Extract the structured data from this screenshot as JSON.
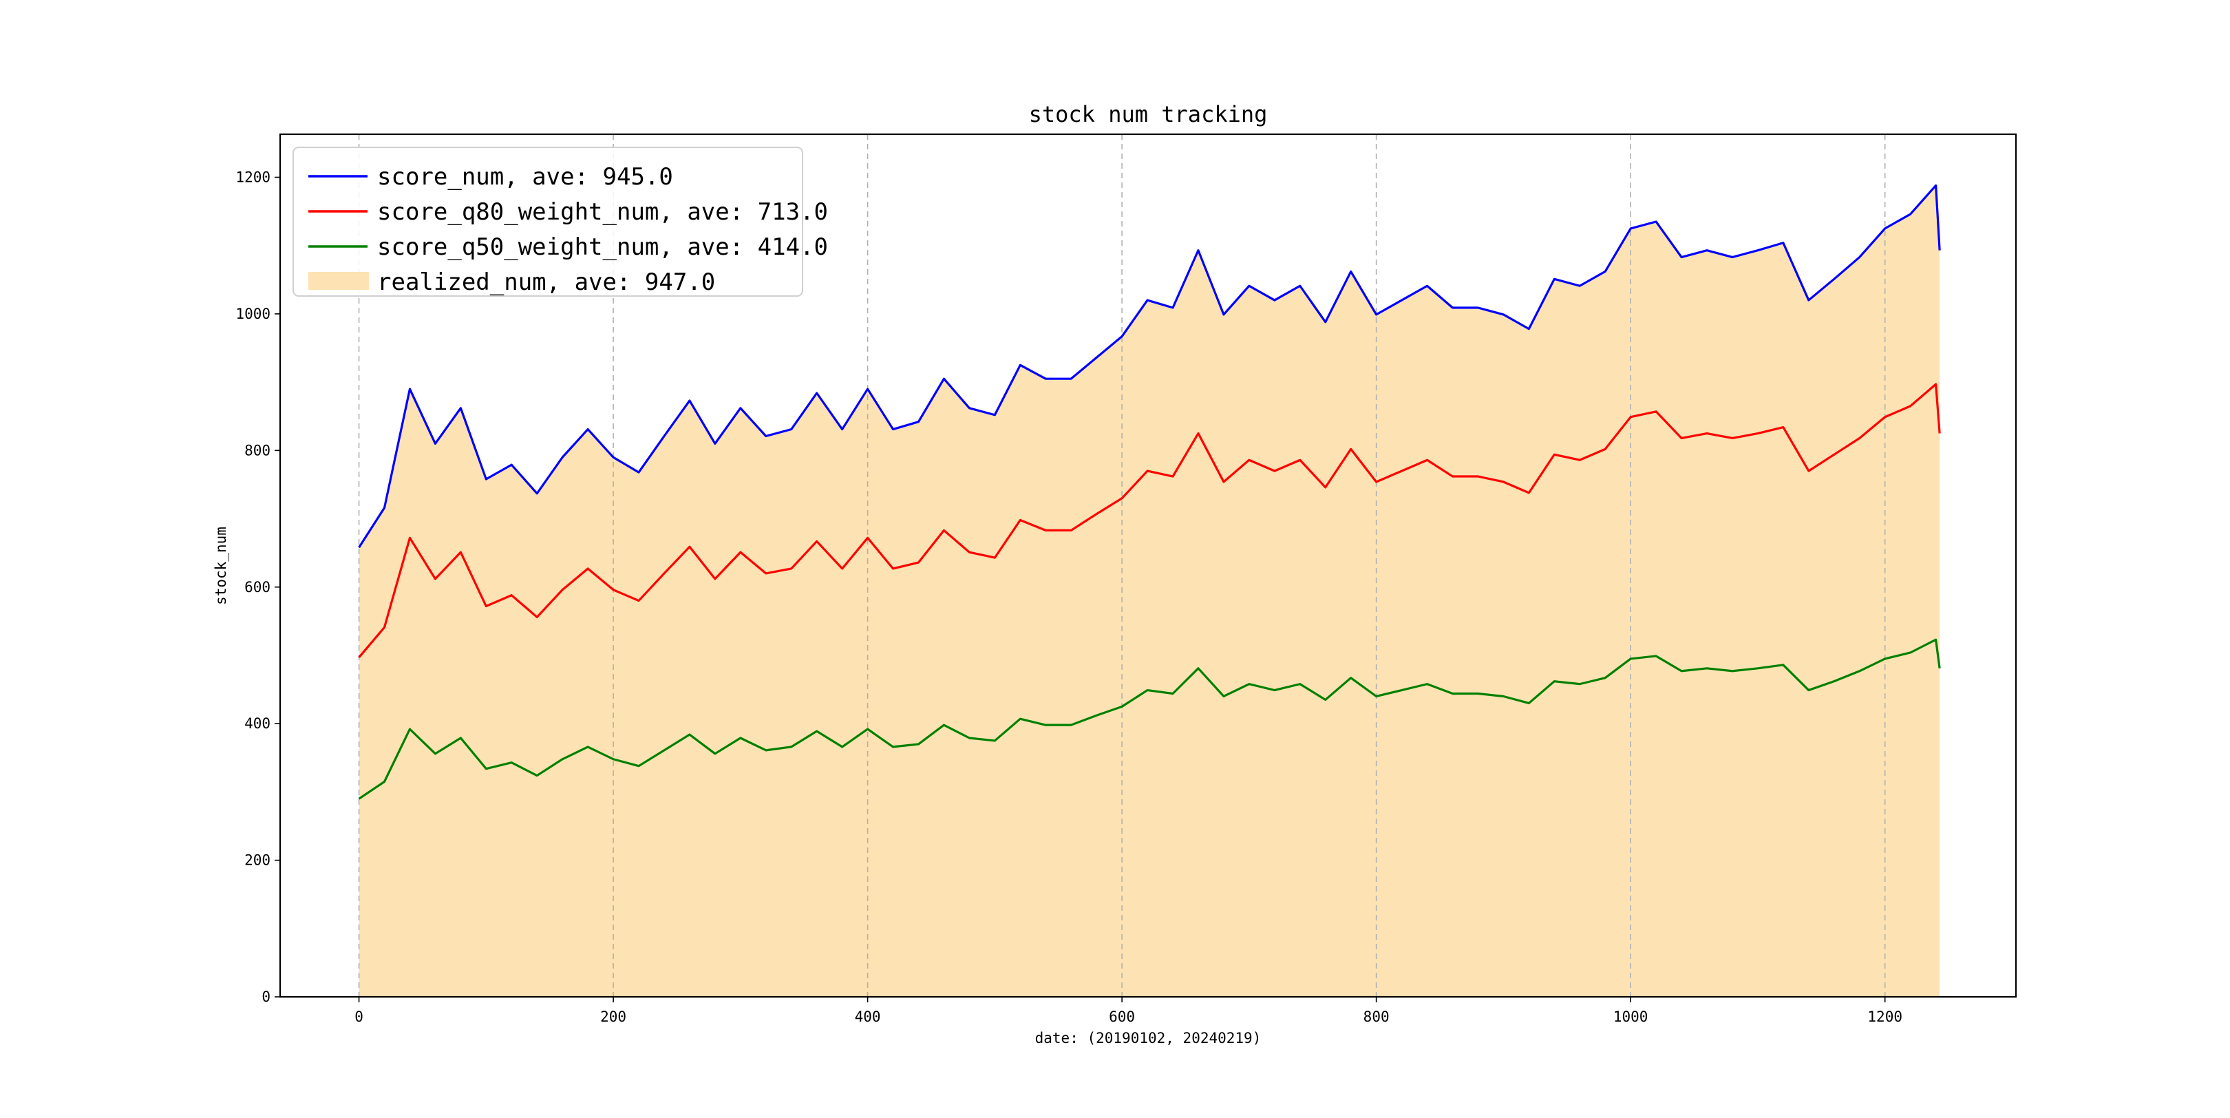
{
  "chart_data": {
    "type": "line",
    "title": "stock num tracking",
    "xlabel": "date: (20190102, 20240219)",
    "ylabel": "stock_num",
    "xlim": [
      -62,
      1303
    ],
    "ylim": [
      0,
      1263
    ],
    "xticks": [
      0,
      200,
      400,
      600,
      800,
      1000,
      1200
    ],
    "yticks": [
      0,
      200,
      400,
      600,
      800,
      1000,
      1200
    ],
    "grid": "x-dashed",
    "legend_position": "top-left",
    "x": [
      0,
      20,
      40,
      60,
      80,
      100,
      120,
      140,
      160,
      180,
      200,
      220,
      240,
      260,
      280,
      300,
      320,
      340,
      360,
      380,
      400,
      420,
      440,
      460,
      480,
      500,
      520,
      540,
      560,
      580,
      600,
      620,
      640,
      660,
      680,
      700,
      720,
      740,
      760,
      780,
      800,
      820,
      840,
      860,
      880,
      900,
      920,
      940,
      960,
      980,
      1000,
      1020,
      1040,
      1060,
      1080,
      1100,
      1120,
      1140,
      1160,
      1180,
      1200,
      1220,
      1240,
      1243
    ],
    "series": [
      {
        "name": "realized_num",
        "legend": "realized_num, ave: 947.0",
        "color": "#fde3b3",
        "kind": "area",
        "values": [
          658,
          716,
          890,
          810,
          862,
          758,
          779,
          737,
          790,
          831,
          790,
          768,
          821,
          873,
          810,
          862,
          821,
          831,
          884,
          831,
          890,
          831,
          842,
          905,
          862,
          852,
          925,
          905,
          905,
          936,
          967,
          1020,
          1009,
          1093,
          999,
          1041,
          1020,
          1041,
          988,
          1062,
          999,
          1020,
          1041,
          1009,
          1009,
          999,
          978,
          1051,
          1041,
          1062,
          1125,
          1135,
          1083,
          1093,
          1083,
          1093,
          1104,
          1020,
          1051,
          1083,
          1125,
          1146,
          1188,
          1093
        ]
      },
      {
        "name": "score_num",
        "legend": "score_num, ave: 945.0",
        "color": "#0000ff",
        "kind": "line",
        "values": [
          658,
          716,
          890,
          810,
          862,
          758,
          779,
          737,
          790,
          831,
          790,
          768,
          821,
          873,
          810,
          862,
          821,
          831,
          884,
          831,
          890,
          831,
          842,
          905,
          862,
          852,
          925,
          905,
          905,
          936,
          967,
          1020,
          1009,
          1093,
          999,
          1041,
          1020,
          1041,
          988,
          1062,
          999,
          1020,
          1041,
          1009,
          1009,
          999,
          978,
          1051,
          1041,
          1062,
          1125,
          1135,
          1083,
          1093,
          1083,
          1093,
          1104,
          1020,
          1051,
          1083,
          1125,
          1146,
          1188,
          1093
        ]
      },
      {
        "name": "score_q80_weight_num",
        "legend": "score_q80_weight_num, ave: 713.0",
        "color": "#ff0000",
        "kind": "line",
        "values": [
          497,
          541,
          672,
          612,
          651,
          572,
          588,
          556,
          596,
          627,
          596,
          580,
          620,
          659,
          612,
          651,
          620,
          627,
          667,
          627,
          672,
          627,
          636,
          683,
          651,
          643,
          698,
          683,
          683,
          707,
          730,
          770,
          762,
          825,
          754,
          786,
          770,
          786,
          746,
          802,
          754,
          770,
          786,
          762,
          762,
          754,
          738,
          794,
          786,
          802,
          849,
          857,
          818,
          825,
          818,
          825,
          834,
          770,
          794,
          818,
          849,
          865,
          897,
          825
        ]
      },
      {
        "name": "score_q50_weight_num",
        "legend": "score_q50_weight_num, ave: 414.0",
        "color": "#008000",
        "kind": "line",
        "values": [
          290,
          315,
          392,
          356,
          379,
          334,
          343,
          324,
          348,
          366,
          348,
          338,
          361,
          384,
          356,
          379,
          361,
          366,
          389,
          366,
          392,
          366,
          370,
          398,
          379,
          375,
          407,
          398,
          398,
          412,
          425,
          449,
          444,
          481,
          440,
          458,
          449,
          458,
          435,
          467,
          440,
          449,
          458,
          444,
          444,
          440,
          430,
          462,
          458,
          467,
          495,
          499,
          477,
          481,
          477,
          481,
          486,
          449,
          462,
          477,
          495,
          504,
          523,
          481
        ]
      }
    ]
  }
}
